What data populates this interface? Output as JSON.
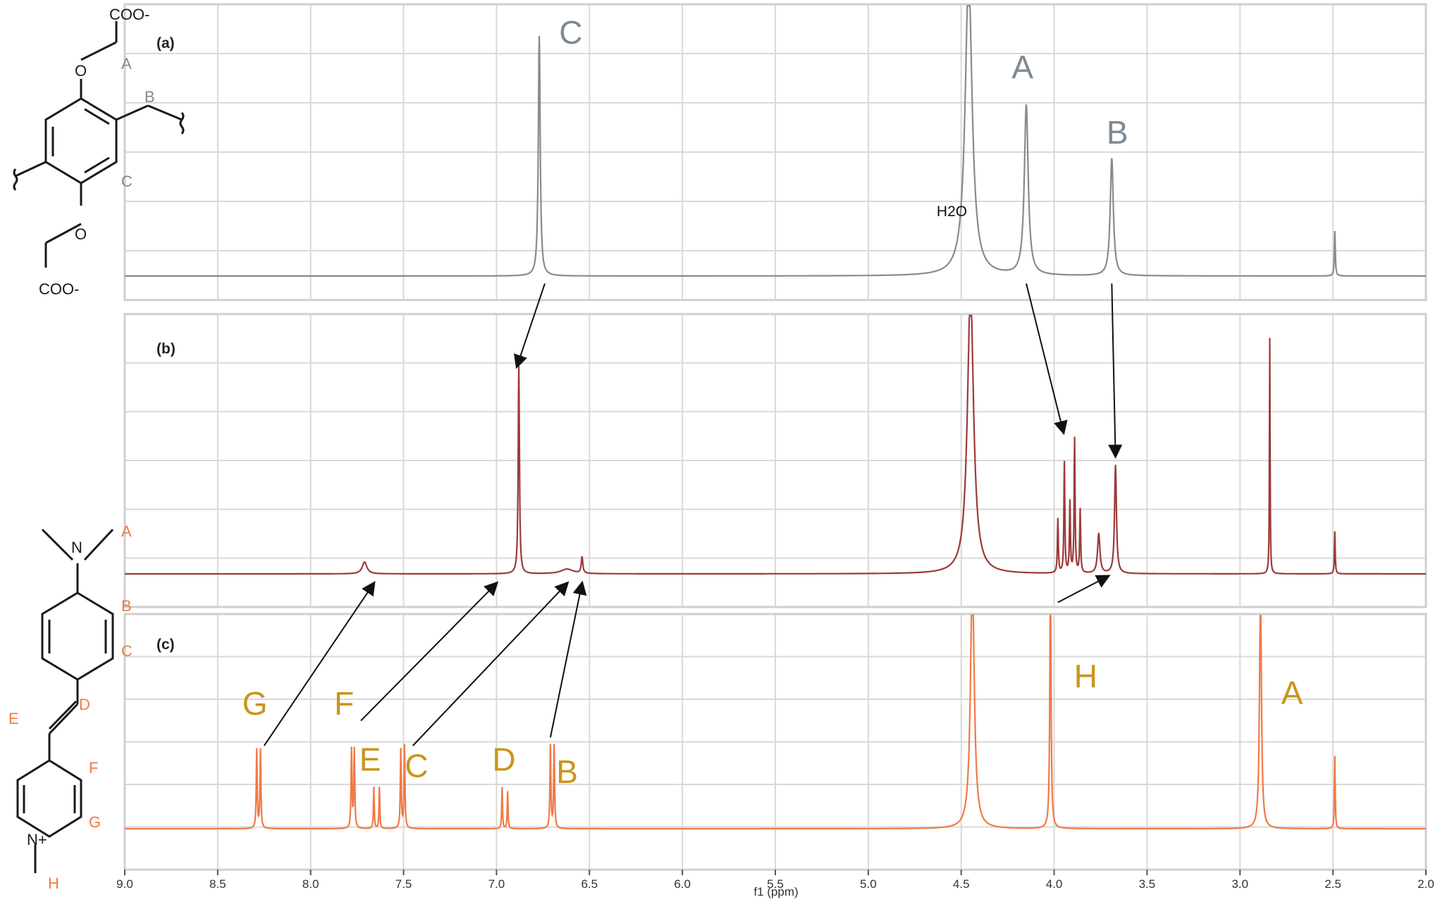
{
  "chart_data": {
    "type": "line",
    "x_axis": {
      "label": "f1 (ppm)",
      "range": [
        9.0,
        2.0
      ],
      "ticks": [
        "9.0",
        "8.5",
        "8.0",
        "7.5",
        "7.0",
        "6.5",
        "6.0",
        "5.5",
        "5.0",
        "4.5",
        "4.0",
        "3.5",
        "3.0",
        "2.5",
        "2.0"
      ]
    },
    "grid": true,
    "panels": [
      {
        "label": "(a)",
        "color": "#8a8a8a",
        "label_color": "#7d8a92",
        "peaks": [
          {
            "ppm": 6.77,
            "height": 0.96,
            "width": 0.012
          },
          {
            "ppm": 4.46,
            "height": 1.2,
            "width": 0.045
          },
          {
            "ppm": 4.15,
            "height": 0.68,
            "width": 0.025
          },
          {
            "ppm": 3.69,
            "height": 0.47,
            "width": 0.02
          },
          {
            "ppm": 2.49,
            "height": 0.18,
            "width": 0.006
          }
        ],
        "annotations": [
          {
            "text": "C",
            "ppm": 6.6,
            "level": 0.93,
            "size": "large"
          },
          {
            "text": "H2O",
            "ppm": 4.55,
            "level": 0.24,
            "size": "small"
          },
          {
            "text": "A",
            "ppm": 4.17,
            "level": 0.79,
            "size": "large"
          },
          {
            "text": "B",
            "ppm": 3.66,
            "level": 0.53,
            "size": "large"
          }
        ],
        "structure_labels": [
          "COO-",
          "COO-",
          "O",
          "O",
          "A",
          "B",
          "C"
        ]
      },
      {
        "label": "(b)",
        "color": "#9c3a3a",
        "label_color": "#9c3a3a",
        "peaks": [
          {
            "ppm": 7.71,
            "height": 0.05,
            "width": 0.03
          },
          {
            "ppm": 6.88,
            "height": 0.88,
            "width": 0.008
          },
          {
            "ppm": 6.62,
            "height": 0.02,
            "width": 0.08
          },
          {
            "ppm": 6.54,
            "height": 0.07,
            "width": 0.01
          },
          {
            "ppm": 4.45,
            "height": 1.2,
            "width": 0.04
          },
          {
            "ppm": 3.98,
            "height": 0.23,
            "width": 0.006
          },
          {
            "ppm": 3.945,
            "height": 0.47,
            "width": 0.006
          },
          {
            "ppm": 3.915,
            "height": 0.3,
            "width": 0.006
          },
          {
            "ppm": 3.89,
            "height": 0.57,
            "width": 0.006
          },
          {
            "ppm": 3.86,
            "height": 0.27,
            "width": 0.006
          },
          {
            "ppm": 3.76,
            "height": 0.17,
            "width": 0.015
          },
          {
            "ppm": 3.67,
            "height": 0.46,
            "width": 0.012
          },
          {
            "ppm": 2.84,
            "height": 1.0,
            "width": 0.004
          },
          {
            "ppm": 2.49,
            "height": 0.18,
            "width": 0.005
          }
        ],
        "annotations": []
      },
      {
        "label": "(c)",
        "color": "#f07a45",
        "label_color": "#c9951d",
        "peaks": [
          {
            "ppm": 8.29,
            "height": 0.38,
            "width": 0.006
          },
          {
            "ppm": 8.27,
            "height": 0.38,
            "width": 0.006
          },
          {
            "ppm": 7.78,
            "height": 0.38,
            "width": 0.006
          },
          {
            "ppm": 7.765,
            "height": 0.38,
            "width": 0.006
          },
          {
            "ppm": 7.66,
            "height": 0.2,
            "width": 0.005
          },
          {
            "ppm": 7.63,
            "height": 0.2,
            "width": 0.005
          },
          {
            "ppm": 7.515,
            "height": 0.38,
            "width": 0.006
          },
          {
            "ppm": 7.495,
            "height": 0.4,
            "width": 0.006
          },
          {
            "ppm": 6.97,
            "height": 0.2,
            "width": 0.005
          },
          {
            "ppm": 6.94,
            "height": 0.18,
            "width": 0.005
          },
          {
            "ppm": 6.71,
            "height": 0.4,
            "width": 0.006
          },
          {
            "ppm": 6.69,
            "height": 0.4,
            "width": 0.006
          },
          {
            "ppm": 4.44,
            "height": 1.2,
            "width": 0.025
          },
          {
            "ppm": 4.02,
            "height": 1.2,
            "width": 0.008
          },
          {
            "ppm": 2.89,
            "height": 1.2,
            "width": 0.012
          },
          {
            "ppm": 2.49,
            "height": 0.35,
            "width": 0.005
          }
        ],
        "annotations": [
          {
            "text": "G",
            "ppm": 8.3,
            "level": 0.55,
            "size": "large"
          },
          {
            "text": "F",
            "ppm": 7.82,
            "level": 0.55,
            "size": "large"
          },
          {
            "text": "E",
            "ppm": 7.68,
            "level": 0.28,
            "size": "large"
          },
          {
            "text": "C",
            "ppm": 7.43,
            "level": 0.25,
            "size": "large"
          },
          {
            "text": "D",
            "ppm": 6.96,
            "level": 0.28,
            "size": "large"
          },
          {
            "text": "B",
            "ppm": 6.62,
            "level": 0.22,
            "size": "large"
          },
          {
            "text": "H",
            "ppm": 3.83,
            "level": 0.68,
            "size": "large"
          },
          {
            "text": "A",
            "ppm": 2.72,
            "level": 0.6,
            "size": "large"
          }
        ],
        "structure_labels": [
          "N",
          "N+",
          "A",
          "B",
          "C",
          "D",
          "E",
          "F",
          "G",
          "H"
        ]
      }
    ],
    "arrows": [
      {
        "from_panel": 0,
        "from_ppm": 6.74,
        "from_level": -0.03,
        "to_panel": 1,
        "to_ppm": 6.89,
        "to_level": 0.88
      },
      {
        "from_panel": 0,
        "from_ppm": 4.15,
        "from_level": -0.03,
        "to_panel": 1,
        "to_ppm": 3.95,
        "to_level": 0.6
      },
      {
        "from_panel": 0,
        "from_ppm": 3.69,
        "from_level": -0.03,
        "to_panel": 1,
        "to_ppm": 3.67,
        "to_level": 0.5
      },
      {
        "from_panel": 2,
        "from_ppm": 8.25,
        "from_level": 0.4,
        "to_panel": 1,
        "to_ppm": 7.66,
        "to_level": -0.04
      },
      {
        "from_panel": 2,
        "from_ppm": 7.73,
        "from_level": 0.52,
        "to_panel": 1,
        "to_ppm": 7.0,
        "to_level": -0.04
      },
      {
        "from_panel": 2,
        "from_ppm": 7.45,
        "from_level": 0.4,
        "to_panel": 1,
        "to_ppm": 6.62,
        "to_level": -0.04
      },
      {
        "from_panel": 2,
        "from_ppm": 6.71,
        "from_level": 0.44,
        "to_panel": 1,
        "to_ppm": 6.54,
        "to_level": -0.04
      },
      {
        "from_panel": 2,
        "from_ppm": 3.98,
        "from_level": 1.09,
        "to_panel": 1,
        "to_ppm": 3.71,
        "to_level": -0.01
      }
    ]
  }
}
